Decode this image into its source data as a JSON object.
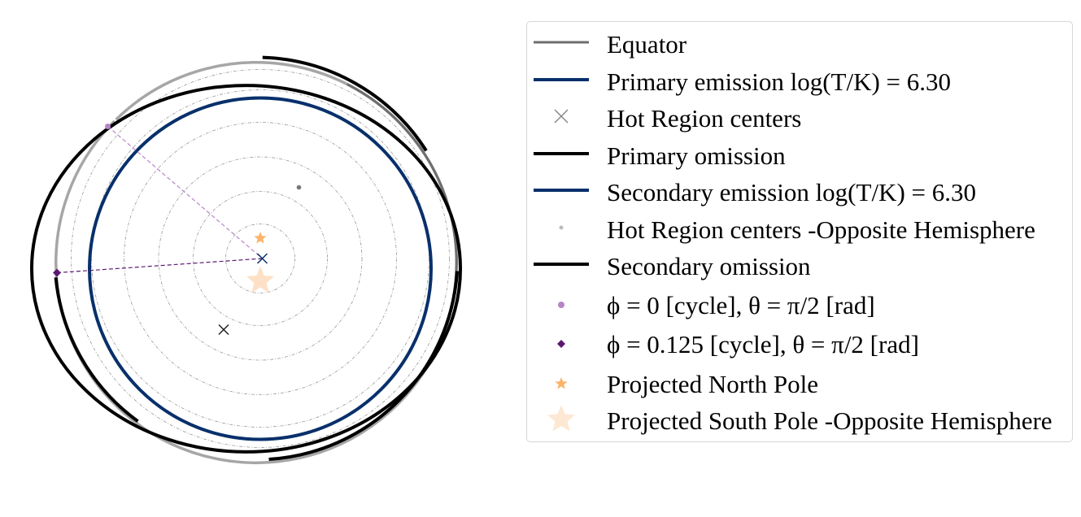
{
  "chart_data": {
    "type": "scatter",
    "title": "",
    "xlabel": "",
    "ylabel": "",
    "grid": false,
    "legend_placement": "right",
    "colors": {
      "equator": "#6e6e6e",
      "primary_emission": "#08306b",
      "hot_centers": "#888888",
      "omission": "#000000",
      "phase0": "#b784c6",
      "phase0125": "#5b1a72",
      "north_pole": "#fdb36b",
      "south_pole": "#fdd9b8",
      "guide_circles": "#9a9a9a"
    },
    "legend": [
      {
        "label": "Equator",
        "marker": "line",
        "color": "#6e6e6e"
      },
      {
        "label": "Primary emission log(T/K) = 6.30",
        "marker": "line",
        "color": "#08306b"
      },
      {
        "label": "Hot Region centers",
        "marker": "x",
        "color": "#888888"
      },
      {
        "label": "Primary omission",
        "marker": "line",
        "color": "#000000"
      },
      {
        "label": "Secondary emission log(T/K) = 6.30",
        "marker": "line",
        "color": "#08306b"
      },
      {
        "label": "Hot Region centers -Opposite Hemisphere",
        "marker": "dot",
        "color": "#bbbbbb"
      },
      {
        "label": "Secondary omission",
        "marker": "line",
        "color": "#000000"
      },
      {
        "label": "ϕ = 0 [cycle], θ = π/2 [rad]",
        "marker": "circle",
        "color": "#b784c6"
      },
      {
        "label": "ϕ = 0.125 [cycle], θ = π/2 [rad]",
        "marker": "diamond",
        "color": "#5b1a72"
      },
      {
        "label": "Projected North Pole",
        "marker": "star",
        "color": "#fdb36b"
      },
      {
        "label": "Projected South Pole  -Opposite Hemisphere",
        "marker": "bigstar",
        "color": "#fde4cc"
      }
    ],
    "guide_circles_r": [
      0.17,
      0.33,
      0.5,
      0.67,
      0.83,
      0.93
    ],
    "equator": {
      "cx": -0.02,
      "cy": -0.02,
      "rx": 0.985,
      "ry": 0.985
    },
    "primary_emission": {
      "cx": 0.0,
      "cy": -0.05,
      "r": 0.84
    },
    "secondary_emission": {
      "cx": 0.0,
      "cy": -0.05,
      "r": 0.84
    },
    "primary_omission": {
      "cx": -0.13,
      "cy": -0.07,
      "rx": 0.83,
      "ry": 0.92
    },
    "secondary_omission": {
      "cx": -0.02,
      "cy": 0.0,
      "rx": 0.99,
      "ry": 0.99
    },
    "hot_region_centers": [
      {
        "x": 0.01,
        "y": 0.0
      },
      {
        "x": -0.18,
        "y": -0.35
      }
    ],
    "hot_region_centers_opposite": [
      {
        "x": 0.19,
        "y": 0.35
      }
    ],
    "phase0_point": {
      "x": -0.75,
      "y": 0.65
    },
    "phase0125_point": {
      "x": -1.0,
      "y": -0.07
    },
    "north_pole": {
      "x": 0.0,
      "y": 0.1
    },
    "south_pole": {
      "x": 0.0,
      "y": -0.11
    }
  }
}
